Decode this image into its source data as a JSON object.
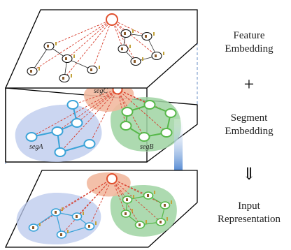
{
  "labels": {
    "feature_line1": "Feature",
    "feature_line2": "Embedding",
    "plus": "+",
    "segment_line1": "Segment",
    "segment_line2": "Embedding",
    "arrow": "⇓",
    "input_line1": "Input",
    "input_line2": "Representation"
  },
  "segments": {
    "a": "segA",
    "b": "segB",
    "c": "segC"
  },
  "colors": {
    "segA_fill": "#b9c8ec",
    "segA_node": "#3aa3d8",
    "segB_fill": "#9fd4a2",
    "segB_node": "#57b84a",
    "segC_fill": "#f2b9a0",
    "segC_node": "#e0502e",
    "link": "#d63a2a",
    "arrow": "#5b8fd4"
  }
}
